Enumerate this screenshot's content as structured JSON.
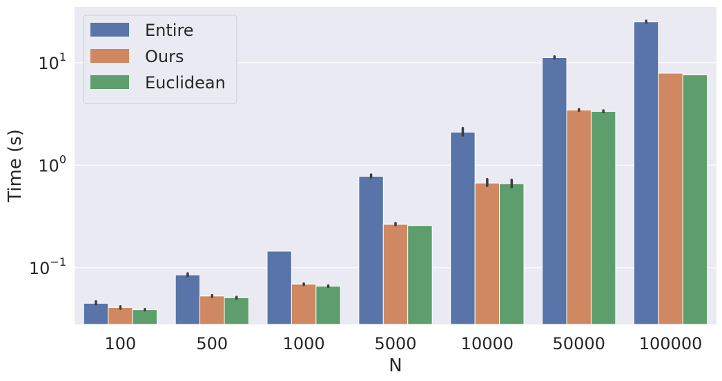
{
  "chart_data": {
    "type": "bar",
    "xlabel": "N",
    "ylabel": "Time (s)",
    "yscale": "log",
    "ylim": [
      0.028,
      35
    ],
    "grid": true,
    "legend_position": "top-left",
    "categories": [
      "100",
      "500",
      "1000",
      "5000",
      "10000",
      "50000",
      "100000"
    ],
    "y_ticks": [
      {
        "value": 0.1,
        "base": "10",
        "exp": "−1"
      },
      {
        "value": 1,
        "base": "10",
        "exp": "0"
      },
      {
        "value": 10,
        "base": "10",
        "exp": "1"
      }
    ],
    "series": [
      {
        "name": "Entire",
        "color": "#5874a8",
        "values": [
          0.045,
          0.085,
          0.145,
          0.78,
          2.1,
          11.2,
          25.0
        ],
        "errors": [
          [
            0.044,
            0.047
          ],
          [
            0.083,
            0.088
          ],
          null,
          [
            0.76,
            0.81
          ],
          [
            1.95,
            2.3
          ],
          [
            11.0,
            11.5
          ],
          [
            24.6,
            25.6
          ]
        ]
      },
      {
        "name": "Ours",
        "color": "#cf8862",
        "values": [
          0.041,
          0.053,
          0.069,
          0.265,
          0.67,
          3.45,
          7.9
        ],
        "errors": [
          [
            0.04,
            0.042
          ],
          [
            0.052,
            0.054
          ],
          [
            0.068,
            0.07
          ],
          [
            0.26,
            0.272
          ],
          [
            0.63,
            0.73
          ],
          [
            3.4,
            3.52
          ],
          null
        ]
      },
      {
        "name": "Euclidean",
        "color": "#5d9e6c",
        "values": [
          0.039,
          0.051,
          0.066,
          0.258,
          0.66,
          3.35,
          7.6
        ],
        "errors": [
          [
            0.0385,
            0.0395
          ],
          [
            0.05,
            0.052
          ],
          [
            0.065,
            0.067
          ],
          null,
          [
            0.61,
            0.72
          ],
          [
            3.3,
            3.42
          ],
          null
        ]
      }
    ]
  }
}
